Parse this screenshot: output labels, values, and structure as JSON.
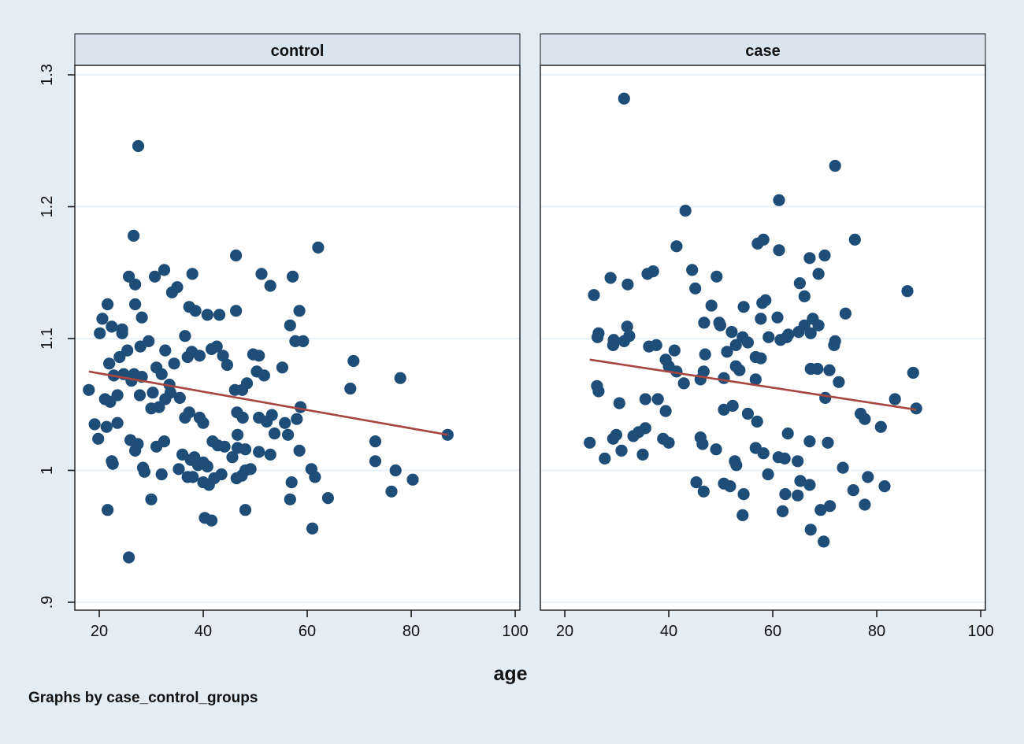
{
  "chart_data": {
    "type": "scatter",
    "layout": "two-panel small multiples, graphs by group; horizontal gridlines; no legend",
    "xlabel": "age",
    "footer": "Graphs by case_control_groups",
    "x_ticks": [
      20,
      40,
      60,
      80,
      100
    ],
    "y_ticks": [
      0.9,
      1.0,
      1.1,
      1.2,
      1.3
    ],
    "y_tick_labels": [
      ".9",
      "1",
      "1.1",
      "1.2",
      "1.3"
    ],
    "xlim": [
      15.3,
      100.9
    ],
    "ylim": [
      0.894,
      1.3072
    ],
    "panels": [
      {
        "title": "control",
        "fit_line": {
          "x1": 18.0,
          "y1": 1.075,
          "x2": 87.0,
          "y2": 1.027
        },
        "points": [
          [
            27.5,
            1.246
          ],
          [
            26.6,
            1.178
          ],
          [
            46.3,
            1.163
          ],
          [
            62.1,
            1.169
          ],
          [
            37.9,
            1.149
          ],
          [
            57.2,
            1.147
          ],
          [
            25.7,
            1.147
          ],
          [
            26.9,
            1.141
          ],
          [
            32.5,
            1.152
          ],
          [
            30.7,
            1.147
          ],
          [
            35,
            1.139
          ],
          [
            34,
            1.135
          ],
          [
            38.5,
            1.121
          ],
          [
            37.3,
            1.124
          ],
          [
            40.8,
            1.118
          ],
          [
            43.1,
            1.118
          ],
          [
            46.3,
            1.121
          ],
          [
            51.2,
            1.149
          ],
          [
            52.9,
            1.14
          ],
          [
            56.7,
            1.11
          ],
          [
            58.5,
            1.121
          ],
          [
            21.6,
            1.126
          ],
          [
            20.6,
            1.115
          ],
          [
            22.4,
            1.109
          ],
          [
            24.4,
            1.107
          ],
          [
            26.9,
            1.126
          ],
          [
            28.2,
            1.116
          ],
          [
            57.7,
            1.098
          ],
          [
            59.2,
            1.098
          ],
          [
            18,
            1.061
          ],
          [
            20.1,
            1.104
          ],
          [
            21.9,
            1.081
          ],
          [
            22.8,
            1.072
          ],
          [
            21.1,
            1.054
          ],
          [
            22.1,
            1.052
          ],
          [
            23.5,
            1.057
          ],
          [
            24.4,
            1.104
          ],
          [
            25.4,
            1.091
          ],
          [
            23.9,
            1.086
          ],
          [
            24.7,
            1.073
          ],
          [
            26.7,
            1.073
          ],
          [
            26.2,
            1.068
          ],
          [
            27.9,
            1.094
          ],
          [
            29.5,
            1.098
          ],
          [
            28.2,
            1.071
          ],
          [
            27.8,
            1.057
          ],
          [
            30,
            1.047
          ],
          [
            23.5,
            1.036
          ],
          [
            21.4,
            1.033
          ],
          [
            19.1,
            1.035
          ],
          [
            19.8,
            1.024
          ],
          [
            26,
            1.023
          ],
          [
            27.4,
            1.02
          ],
          [
            22.4,
            1.007
          ],
          [
            28.4,
            1.002
          ],
          [
            31,
            1.078
          ],
          [
            32,
            1.073
          ],
          [
            32.7,
            1.091
          ],
          [
            34.4,
            1.081
          ],
          [
            30.3,
            1.059
          ],
          [
            31.5,
            1.048
          ],
          [
            32.7,
            1.054
          ],
          [
            33.7,
            1.059
          ],
          [
            35.5,
            1.055
          ],
          [
            33.5,
            1.065
          ],
          [
            36.5,
            1.102
          ],
          [
            37.8,
            1.09
          ],
          [
            37,
            1.086
          ],
          [
            39.3,
            1.087
          ],
          [
            41.6,
            1.092
          ],
          [
            42.6,
            1.094
          ],
          [
            43.8,
            1.087
          ],
          [
            44.6,
            1.08
          ],
          [
            46.1,
            1.061
          ],
          [
            47.5,
            1.061
          ],
          [
            48.4,
            1.066
          ],
          [
            49.6,
            1.088
          ],
          [
            50.7,
            1.087
          ],
          [
            50.3,
            1.075
          ],
          [
            51.7,
            1.072
          ],
          [
            55.2,
            1.078
          ],
          [
            46.5,
            1.044
          ],
          [
            47.6,
            1.04
          ],
          [
            50.7,
            1.04
          ],
          [
            53.2,
            1.042
          ],
          [
            52.2,
            1.037
          ],
          [
            55.7,
            1.036
          ],
          [
            58,
            1.039
          ],
          [
            58.7,
            1.048
          ],
          [
            46.6,
            1.027
          ],
          [
            48.1,
            1.016
          ],
          [
            45.6,
            1.01
          ],
          [
            50.7,
            1.014
          ],
          [
            53.7,
            1.028
          ],
          [
            56.3,
            1.027
          ],
          [
            52.9,
            1.012
          ],
          [
            37.3,
            1.044
          ],
          [
            36.5,
            1.04
          ],
          [
            36,
            1.012
          ],
          [
            37.6,
            1.008
          ],
          [
            39.3,
            1.04
          ],
          [
            40,
            1.036
          ],
          [
            41.8,
            1.022
          ],
          [
            42.8,
            1.019
          ],
          [
            32.5,
            1.022
          ],
          [
            31,
            1.018
          ],
          [
            32,
            0.997
          ],
          [
            35.3,
            1.001
          ],
          [
            38,
            0.995
          ],
          [
            37,
            0.995
          ],
          [
            40,
            1.006
          ],
          [
            43.5,
            0.997
          ],
          [
            46.4,
            0.994
          ],
          [
            48.1,
            1.0
          ],
          [
            22.6,
            1.005
          ],
          [
            28.7,
            0.999
          ],
          [
            26.9,
            1.015
          ],
          [
            38.3,
            1.01
          ],
          [
            39,
            1.004
          ],
          [
            40.8,
            1.003
          ],
          [
            42.1,
            0.994
          ],
          [
            40,
            0.991
          ],
          [
            41.1,
            0.989
          ],
          [
            47.4,
            0.996
          ],
          [
            49.1,
            1.001
          ],
          [
            30,
            0.978
          ],
          [
            21.6,
            0.97
          ],
          [
            48.1,
            0.97
          ],
          [
            40.3,
            0.964
          ],
          [
            41.6,
            0.962
          ],
          [
            25.7,
            0.934
          ],
          [
            57,
            0.991
          ],
          [
            56.7,
            0.978
          ],
          [
            44.1,
            1.018
          ],
          [
            46.6,
            1.017
          ],
          [
            61,
            0.956
          ],
          [
            68.9,
            1.083
          ],
          [
            77.9,
            1.07
          ],
          [
            68.3,
            1.062
          ],
          [
            73.1,
            1.022
          ],
          [
            73.1,
            1.007
          ],
          [
            76.2,
            0.984
          ],
          [
            60.8,
            1.001
          ],
          [
            61.5,
            0.995
          ],
          [
            58.5,
            1.015
          ],
          [
            64,
            0.979
          ],
          [
            87,
            1.027
          ],
          [
            77,
            1.0
          ],
          [
            80.3,
            0.993
          ]
        ]
      },
      {
        "title": "case",
        "fit_line": {
          "x1": 24.8,
          "y1": 1.084,
          "x2": 87.6,
          "y2": 1.046
        },
        "points": [
          [
            31.4,
            1.282
          ],
          [
            43.2,
            1.197
          ],
          [
            41.5,
            1.17
          ],
          [
            57.1,
            1.172
          ],
          [
            58.2,
            1.175
          ],
          [
            44.5,
            1.152
          ],
          [
            37,
            1.151
          ],
          [
            35.9,
            1.149
          ],
          [
            28.8,
            1.146
          ],
          [
            32.1,
            1.141
          ],
          [
            45.1,
            1.138
          ],
          [
            25.6,
            1.133
          ],
          [
            49.2,
            1.147
          ],
          [
            48.2,
            1.125
          ],
          [
            54.4,
            1.124
          ],
          [
            57.7,
            1.115
          ],
          [
            49.7,
            1.112
          ],
          [
            49.9,
            1.11
          ],
          [
            46.8,
            1.112
          ],
          [
            52.1,
            1.105
          ],
          [
            26.5,
            1.104
          ],
          [
            29.4,
            1.099
          ],
          [
            32,
            1.109
          ],
          [
            58,
            1.127
          ],
          [
            72,
            1.231
          ],
          [
            61.2,
            1.205
          ],
          [
            75.8,
            1.175
          ],
          [
            61.2,
            1.167
          ],
          [
            67.1,
            1.161
          ],
          [
            70,
            1.163
          ],
          [
            68.8,
            1.149
          ],
          [
            65.2,
            1.142
          ],
          [
            58.6,
            1.129
          ],
          [
            66.1,
            1.132
          ],
          [
            85.9,
            1.136
          ],
          [
            74,
            1.119
          ],
          [
            60.9,
            1.116
          ],
          [
            67.7,
            1.115
          ],
          [
            66.1,
            1.11
          ],
          [
            68.8,
            1.11
          ],
          [
            65,
            1.105
          ],
          [
            67.3,
            1.104
          ],
          [
            72,
            1.098
          ],
          [
            59.2,
            1.101
          ],
          [
            61.5,
            1.099
          ],
          [
            63,
            1.103
          ],
          [
            26.3,
            1.101
          ],
          [
            29.3,
            1.095
          ],
          [
            31.4,
            1.098
          ],
          [
            32.4,
            1.102
          ],
          [
            36.2,
            1.094
          ],
          [
            37.6,
            1.095
          ],
          [
            41.1,
            1.091
          ],
          [
            39.4,
            1.084
          ],
          [
            40,
            1.079
          ],
          [
            41.5,
            1.075
          ],
          [
            42.9,
            1.066
          ],
          [
            47,
            1.088
          ],
          [
            46.7,
            1.075
          ],
          [
            46.1,
            1.069
          ],
          [
            50.6,
            1.07
          ],
          [
            51.2,
            1.09
          ],
          [
            52.9,
            1.095
          ],
          [
            54.2,
            1.101
          ],
          [
            55.2,
            1.097
          ],
          [
            56.7,
            1.086
          ],
          [
            52.9,
            1.079
          ],
          [
            53.6,
            1.076
          ],
          [
            56.7,
            1.069
          ],
          [
            57.7,
            1.085
          ],
          [
            26.5,
            1.06
          ],
          [
            30.5,
            1.051
          ],
          [
            35.5,
            1.054
          ],
          [
            37.9,
            1.054
          ],
          [
            39.4,
            1.045
          ],
          [
            50.6,
            1.046
          ],
          [
            52.3,
            1.049
          ],
          [
            55.2,
            1.043
          ],
          [
            57,
            1.037
          ],
          [
            24.8,
            1.021
          ],
          [
            27.7,
            1.009
          ],
          [
            29.3,
            1.024
          ],
          [
            29.9,
            1.027
          ],
          [
            30.9,
            1.015
          ],
          [
            33.2,
            1.026
          ],
          [
            34.2,
            1.029
          ],
          [
            35.5,
            1.032
          ],
          [
            35,
            1.012
          ],
          [
            38.9,
            1.024
          ],
          [
            40,
            1.021
          ],
          [
            46.1,
            1.025
          ],
          [
            46.5,
            1.02
          ],
          [
            49.1,
            1.016
          ],
          [
            52.7,
            1.007
          ],
          [
            53,
            1.004
          ],
          [
            56.7,
            1.017
          ],
          [
            45.3,
            0.991
          ],
          [
            46.7,
            0.984
          ],
          [
            50.6,
            0.99
          ],
          [
            51.8,
            0.988
          ],
          [
            54.4,
            0.982
          ],
          [
            54.2,
            0.966
          ],
          [
            26.2,
            1.064
          ],
          [
            71.8,
            1.095
          ],
          [
            87,
            1.074
          ],
          [
            67.3,
            1.077
          ],
          [
            68.6,
            1.077
          ],
          [
            70.9,
            1.076
          ],
          [
            72.7,
            1.067
          ],
          [
            70.1,
            1.055
          ],
          [
            83.5,
            1.054
          ],
          [
            87.6,
            1.047
          ],
          [
            76.9,
            1.043
          ],
          [
            77.7,
            1.039
          ],
          [
            80.8,
            1.033
          ],
          [
            62.9,
            1.028
          ],
          [
            67.1,
            1.022
          ],
          [
            70.6,
            1.021
          ],
          [
            58.2,
            1.013
          ],
          [
            61.1,
            1.01
          ],
          [
            62.3,
            1.009
          ],
          [
            64.8,
            1.007
          ],
          [
            59.1,
            0.997
          ],
          [
            65.3,
            0.992
          ],
          [
            67.1,
            0.989
          ],
          [
            62.4,
            0.982
          ],
          [
            64.8,
            0.981
          ],
          [
            73.5,
            1.002
          ],
          [
            78.3,
            0.995
          ],
          [
            75.5,
            0.985
          ],
          [
            81.5,
            0.988
          ],
          [
            77.7,
            0.974
          ],
          [
            71,
            0.973
          ],
          [
            69.2,
            0.97
          ],
          [
            61.9,
            0.969
          ],
          [
            67.3,
            0.955
          ],
          [
            69.8,
            0.946
          ],
          [
            62.7,
            1.101
          ]
        ]
      }
    ],
    "colors": {
      "background": "#e4edf4",
      "panel_header_bg": "#d9e4ee",
      "plot_bg": "#ffffff",
      "gridline": "#e9f1f8",
      "axis": "#1a1a1a",
      "marker": "#1e4d78",
      "fit_line": "#a8453f"
    }
  }
}
